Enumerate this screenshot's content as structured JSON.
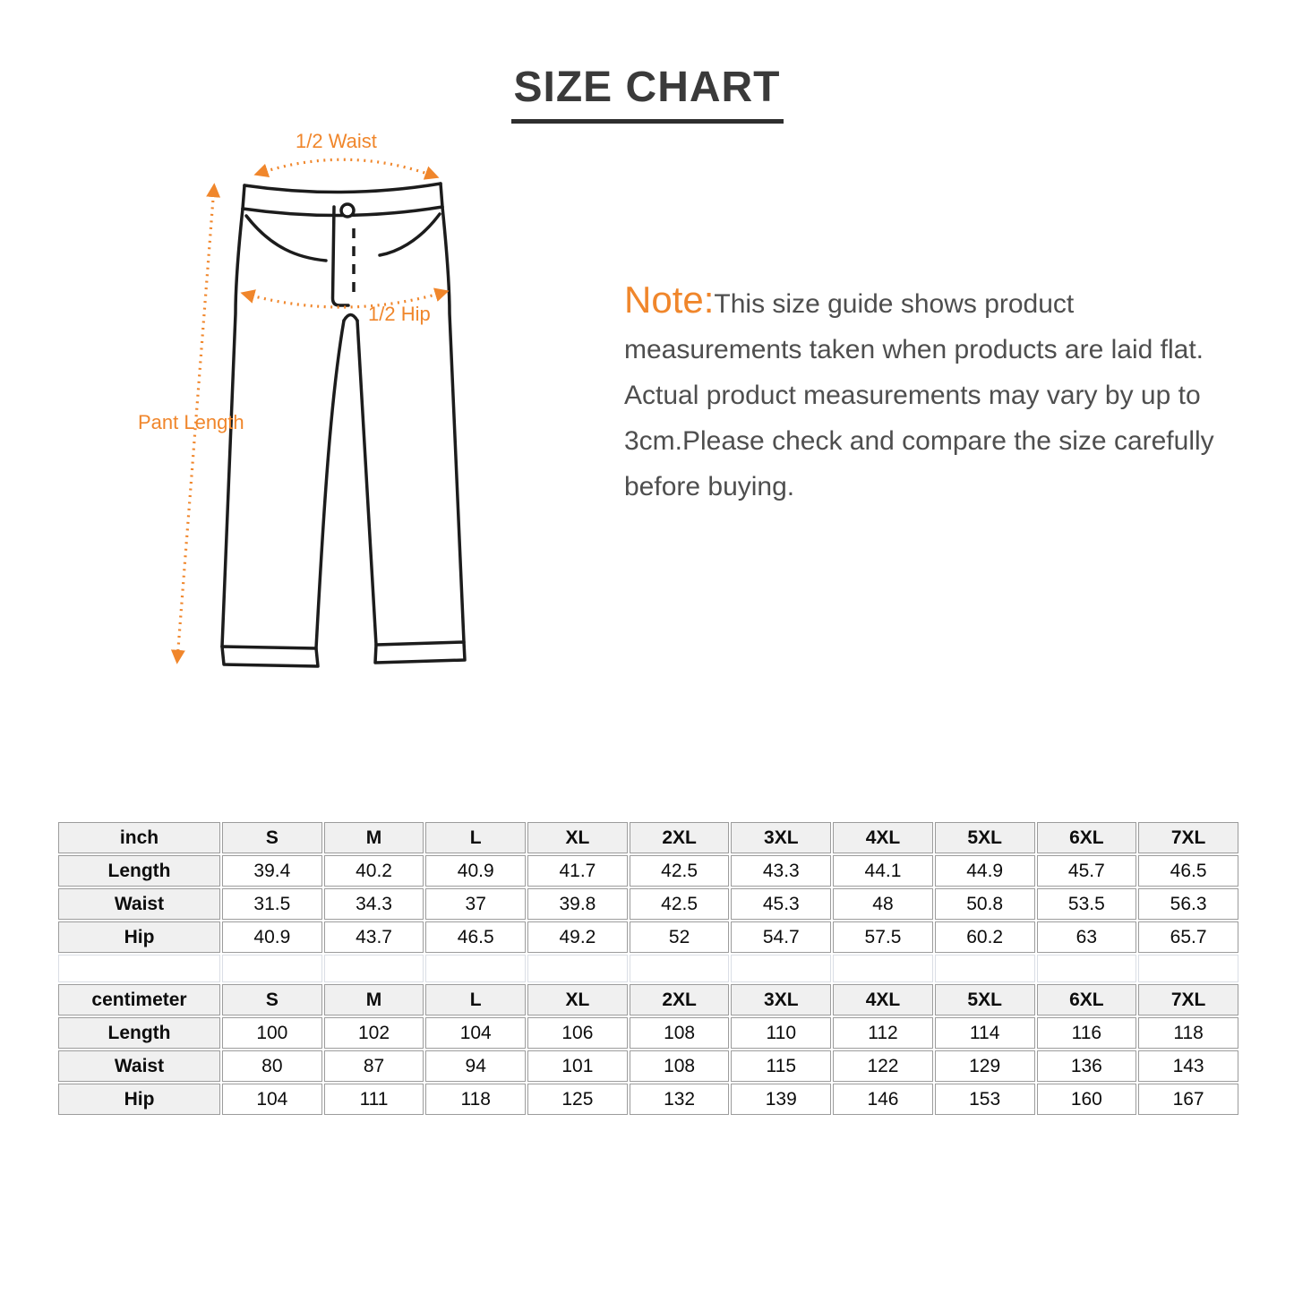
{
  "title": "SIZE CHART",
  "diagram": {
    "labels": {
      "waist": "1/2 Waist",
      "hip": "1/2 Hip",
      "pant_length": "Pant Length"
    }
  },
  "note": {
    "label": "Note:",
    "text": "This size guide shows product measurements taken when products are laid flat. Actual product measurements may vary by up to 3cm.Please check and compare the size carefully before buying."
  },
  "colors": {
    "accent_orange": "#F0862B",
    "note_text_gray": "#4E4E4E",
    "title_gray": "#3A3A3A",
    "table_border": "#9C9C9C",
    "table_header_bg": "#F0F0F0",
    "line_art": "#1C1C1C"
  },
  "size_tables": [
    {
      "unit": "inch",
      "columns": [
        "S",
        "M",
        "L",
        "XL",
        "2XL",
        "3XL",
        "4XL",
        "5XL",
        "6XL",
        "7XL"
      ],
      "rows": [
        {
          "label": "Length",
          "values": [
            "39.4",
            "40.2",
            "40.9",
            "41.7",
            "42.5",
            "43.3",
            "44.1",
            "44.9",
            "45.7",
            "46.5"
          ]
        },
        {
          "label": "Waist",
          "values": [
            "31.5",
            "34.3",
            "37",
            "39.8",
            "42.5",
            "45.3",
            "48",
            "50.8",
            "53.5",
            "56.3"
          ]
        },
        {
          "label": "Hip",
          "values": [
            "40.9",
            "43.7",
            "46.5",
            "49.2",
            "52",
            "54.7",
            "57.5",
            "60.2",
            "63",
            "65.7"
          ]
        }
      ]
    },
    {
      "unit": "centimeter",
      "columns": [
        "S",
        "M",
        "L",
        "XL",
        "2XL",
        "3XL",
        "4XL",
        "5XL",
        "6XL",
        "7XL"
      ],
      "rows": [
        {
          "label": "Length",
          "values": [
            "100",
            "102",
            "104",
            "106",
            "108",
            "110",
            "112",
            "114",
            "116",
            "118"
          ]
        },
        {
          "label": "Waist",
          "values": [
            "80",
            "87",
            "94",
            "101",
            "108",
            "115",
            "122",
            "129",
            "136",
            "143"
          ]
        },
        {
          "label": "Hip",
          "values": [
            "104",
            "111",
            "118",
            "125",
            "132",
            "139",
            "146",
            "153",
            "160",
            "167"
          ]
        }
      ]
    }
  ]
}
